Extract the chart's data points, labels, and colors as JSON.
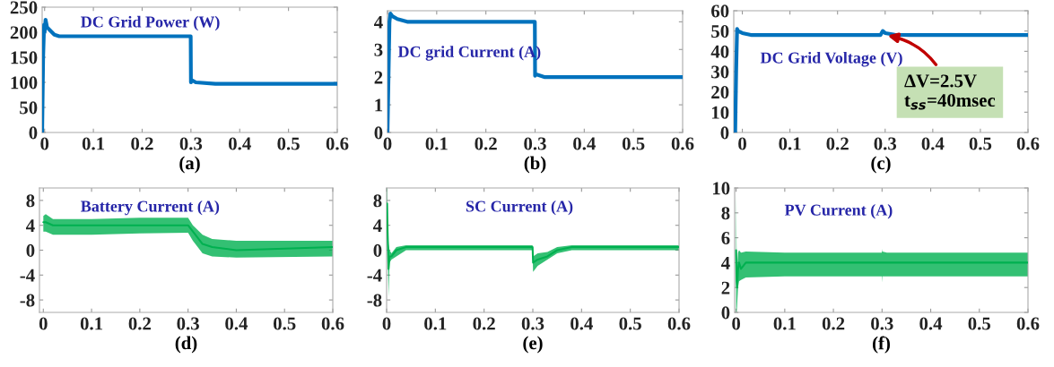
{
  "chart_data": [
    {
      "type": "line",
      "title": "DC Grid Power (W)",
      "xlabel": "(a)",
      "xlim": [
        -0.005,
        0.6
      ],
      "xticks": [
        0,
        0.1,
        0.2,
        0.3,
        0.4,
        0.5,
        0.6
      ],
      "ylim": [
        0,
        250
      ],
      "yticks": [
        0,
        50,
        100,
        150,
        200,
        250
      ],
      "grid": false,
      "series": [
        {
          "color": "#0072bd",
          "x": [
            -0.005,
            -0.003,
            -0.001,
            0,
            0.002,
            0.005,
            0.01,
            0.02,
            0.03,
            0.1,
            0.2,
            0.2995,
            0.3,
            0.301,
            0.31,
            0.35,
            0.6
          ],
          "values": [
            0,
            150,
            215,
            200,
            225,
            210,
            205,
            195,
            192,
            192,
            192,
            192,
            100,
            105,
            100,
            97,
            97
          ]
        }
      ]
    },
    {
      "type": "line",
      "title": "DC grid Current (A)",
      "xlabel": "(b)",
      "xlim": [
        0,
        0.6
      ],
      "xticks": [
        0,
        0.1,
        0.2,
        0.3,
        0.4,
        0.5,
        0.6
      ],
      "ylim": [
        0,
        4.4
      ],
      "yticks": [
        0,
        1,
        2,
        3,
        4
      ],
      "grid": false,
      "series": [
        {
          "color": "#0072bd",
          "x": [
            0,
            0.002,
            0.004,
            0.006,
            0.01,
            0.02,
            0.04,
            0.2995,
            0.3,
            0.302,
            0.32,
            0.6
          ],
          "values": [
            0,
            2,
            4.0,
            4.3,
            4.2,
            4.1,
            4.0,
            4.0,
            2.05,
            2.1,
            2.0,
            2.0
          ]
        }
      ]
    },
    {
      "type": "line",
      "title": "DC Grid Voltage (V)",
      "xlabel": "(c)",
      "xlim": [
        -0.018,
        0.6
      ],
      "xticks": [
        0,
        0.1,
        0.2,
        0.3,
        0.4,
        0.5,
        0.6
      ],
      "ylim": [
        0,
        60
      ],
      "yticks": [
        0,
        10,
        20,
        30,
        40,
        50,
        60
      ],
      "grid": false,
      "annotations": [
        {
          "text": "ΔV=2.5V\nt$_{ss}$=40msec",
          "x": 0.3,
          "y": 48
        }
      ],
      "series": [
        {
          "color": "#0072bd",
          "x": [
            -0.015,
            -0.013,
            -0.011,
            -0.009,
            0,
            0.02,
            0.29,
            0.295,
            0.3,
            0.32,
            0.35,
            0.6
          ],
          "values": [
            0,
            30,
            51,
            50,
            49,
            48,
            48,
            50,
            49,
            48.2,
            48,
            48
          ]
        }
      ]
    },
    {
      "type": "line",
      "title": "Battery Current (A)",
      "xlabel": "(d)",
      "xlim": [
        -0.008,
        0.6
      ],
      "xticks": [
        0,
        0.1,
        0.2,
        0.3,
        0.4,
        0.5,
        0.6
      ],
      "ylim": [
        -10,
        10
      ],
      "yticks": [
        -8,
        -4,
        0,
        4,
        8
      ],
      "grid": false,
      "series": [
        {
          "color": "#00b050",
          "x": [
            0,
            0.005,
            0.02,
            0.1,
            0.2,
            0.3,
            0.31,
            0.33,
            0.35,
            0.4,
            0.6
          ],
          "values": [
            4.5,
            4.5,
            4,
            4,
            4,
            4,
            3,
            1,
            0.5,
            0,
            0.5
          ],
          "lower": [
            3,
            3,
            2.5,
            2.5,
            2.7,
            2.8,
            1.5,
            -0.5,
            -1,
            -1.2,
            -1
          ],
          "upper": [
            5.5,
            5.8,
            5,
            5,
            5.2,
            5.2,
            4,
            2.5,
            1.8,
            1.5,
            1.5
          ]
        }
      ]
    },
    {
      "type": "line",
      "title": "SC Current (A)",
      "xlabel": "(e)",
      "xlim": [
        0,
        0.6
      ],
      "xticks": [
        0,
        0.1,
        0.2,
        0.3,
        0.4,
        0.5,
        0.6
      ],
      "ylim": [
        -10,
        10
      ],
      "yticks": [
        -8,
        -4,
        0,
        4,
        8
      ],
      "grid": false,
      "series": [
        {
          "color": "#00b050",
          "x": [
            0,
            0.001,
            0.002,
            0.004,
            0.006,
            0.01,
            0.02,
            0.04,
            0.1,
            0.2995,
            0.3005,
            0.31,
            0.33,
            0.35,
            0.38,
            0.6
          ],
          "values": [
            5,
            7.5,
            3,
            -3,
            -1,
            -1,
            0,
            0.5,
            0.5,
            0.5,
            -2,
            -1.5,
            -1,
            0,
            0.5,
            0.5
          ],
          "lower": [
            0,
            5,
            2,
            -7.5,
            -2,
            -1.5,
            -1,
            0,
            0,
            0,
            -3.5,
            -2.5,
            -1.5,
            -0.5,
            0,
            0
          ],
          "upper": [
            10,
            10,
            4,
            1,
            0,
            -0.5,
            0.5,
            0.8,
            0.8,
            0.8,
            -1,
            -0.5,
            -0.3,
            0.5,
            0.8,
            0.8
          ]
        }
      ]
    },
    {
      "type": "line",
      "title": "PV Current (A)",
      "xlabel": "(f)",
      "xlim": [
        -0.003,
        0.6
      ],
      "xticks": [
        0,
        0.1,
        0.2,
        0.3,
        0.4,
        0.5,
        0.6
      ],
      "ylim": [
        0,
        10
      ],
      "yticks": [
        0,
        2,
        4,
        6,
        8,
        10
      ],
      "grid": false,
      "series": [
        {
          "color": "#00b050",
          "x": [
            0,
            0.001,
            0.002,
            0.004,
            0.006,
            0.01,
            0.02,
            0.1,
            0.2995,
            0.3,
            0.3005,
            0.31,
            0.6
          ],
          "values": [
            5,
            2.5,
            2,
            3.5,
            4,
            3.5,
            4,
            4,
            4,
            4,
            4,
            4,
            4
          ],
          "lower": [
            0,
            0,
            0.5,
            2,
            2.5,
            2.6,
            2.8,
            2.9,
            2.9,
            2.4,
            2.9,
            2.9,
            2.9
          ],
          "upper": [
            9.7,
            5,
            3.5,
            4.8,
            5,
            4.8,
            4.9,
            4.8,
            4.8,
            5.1,
            4.9,
            4.8,
            4.8
          ]
        }
      ]
    }
  ]
}
